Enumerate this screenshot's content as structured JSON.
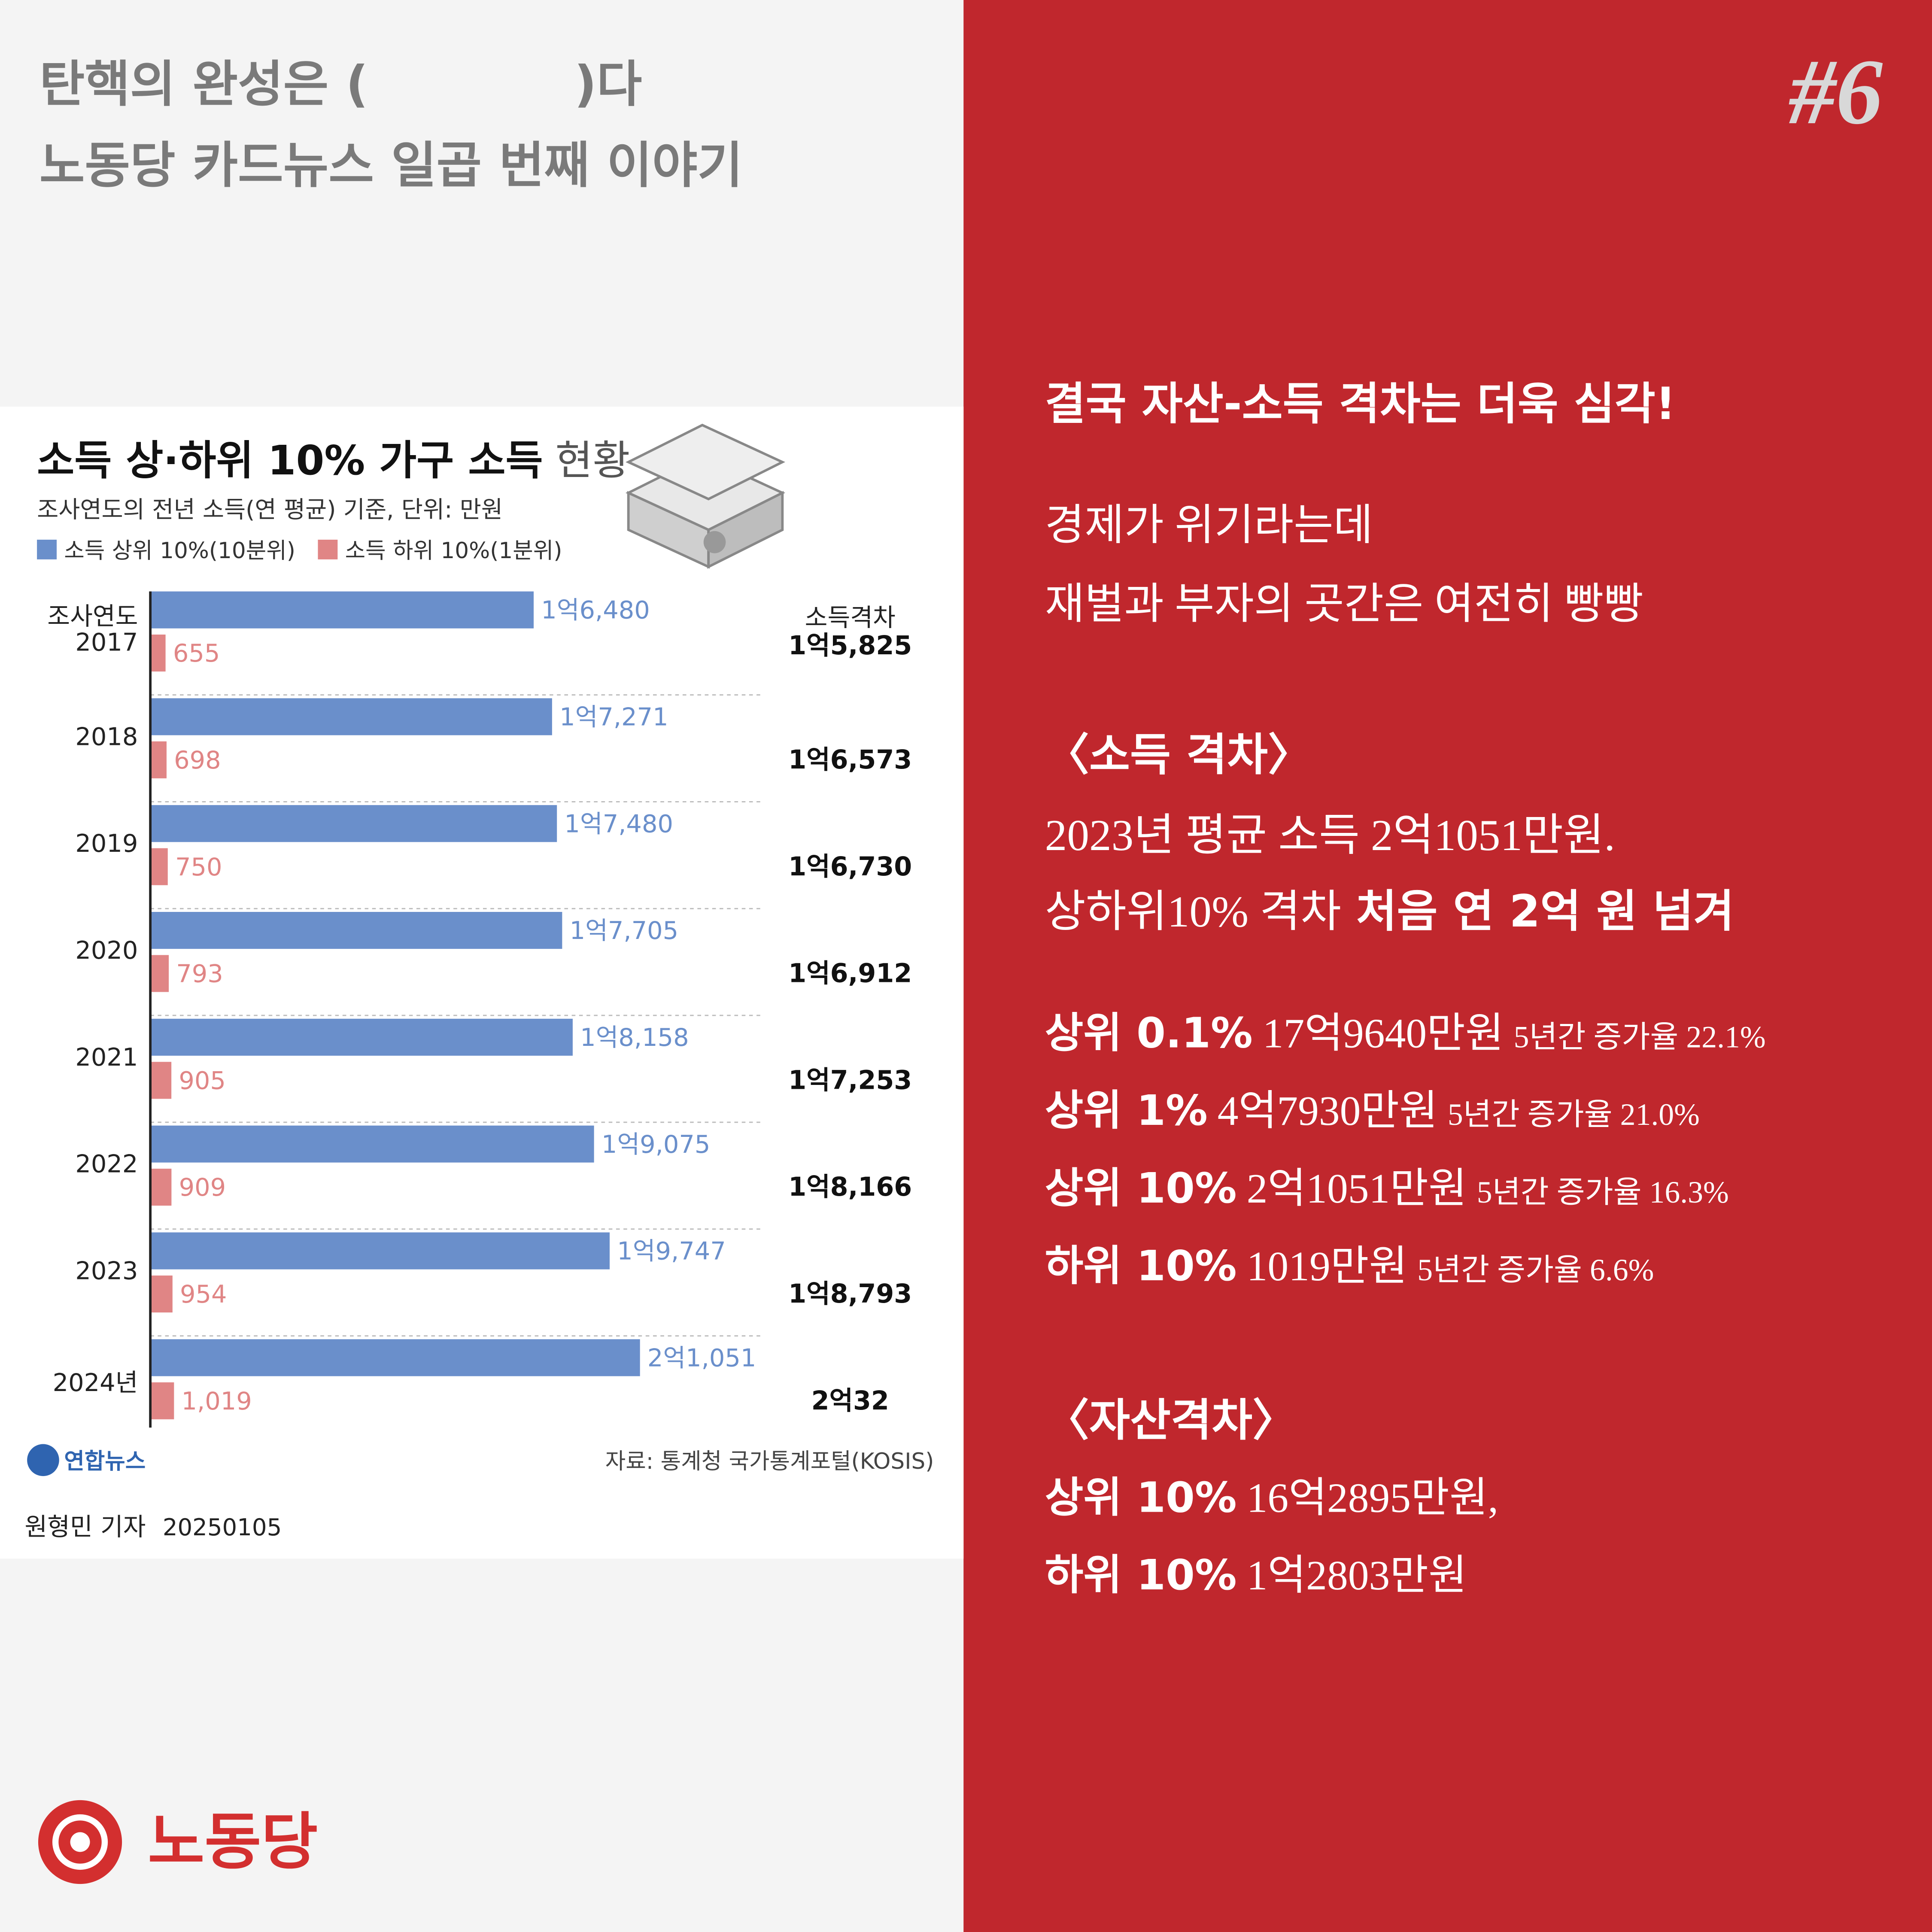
{
  "header": {
    "line1": "탄핵의 완성은 (            )다",
    "line2": "노동당 카드뉴스 일곱 번째 이야기",
    "badge": "#6"
  },
  "chart_data": {
    "type": "hbar",
    "title": "소득 상·하위 10% 가구 소득",
    "title_suffix": "현황",
    "subtitle": "조사연도의 전년 소득(연 평균) 기준, 단위: 만원",
    "y_label": "조사연도",
    "categories": [
      "2017",
      "2018",
      "2019",
      "2020",
      "2021",
      "2022",
      "2023",
      "2024년"
    ],
    "series": [
      {
        "name": "소득 상위 10%(10분위)",
        "color": "#6a8fcb",
        "values": [
          16480,
          17271,
          17480,
          17705,
          18158,
          19075,
          19747,
          21051
        ],
        "value_labels": [
          "1억6,480",
          "1억7,271",
          "1억7,480",
          "1억7,705",
          "1억8,158",
          "1억9,075",
          "1억9,747",
          "2억1,051"
        ]
      },
      {
        "name": "소득 하위 10%(1분위)",
        "color": "#e08585",
        "values": [
          655,
          698,
          750,
          793,
          905,
          909,
          954,
          1019
        ],
        "value_labels": [
          "655",
          "698",
          "750",
          "793",
          "905",
          "909",
          "954",
          "1,019"
        ]
      }
    ],
    "xlim": [
      0,
      33000
    ],
    "gap": {
      "header": "소득격차",
      "values": [
        "1억5,825",
        "1억6,573",
        "1억6,730",
        "1억6,912",
        "1억7,253",
        "1억8,166",
        "1억8,793",
        "2억32"
      ]
    },
    "source": "자료: 통계청 국가통계포털(KOSIS)",
    "agency": "연합뉴스",
    "reporter": "원형민 기자",
    "date": "20250105"
  },
  "right_panel": {
    "heading": "결국 자산-소득 격차는 더욱 심각!",
    "intro": [
      "경제가 위기라는데",
      "재벌과 부자의 곳간은 여전히 빵빵"
    ],
    "income_gap": {
      "heading": "〈소득 격차〉",
      "line1": "2023년 평균 소득 2억1051만원.",
      "line2": [
        "상하위10% 격차",
        "처음 연 2억 원 넘겨"
      ]
    },
    "stats": [
      [
        "상위 0.1%",
        "17억9640만원",
        "5년간 증가율 22.1%"
      ],
      [
        "상위 1%",
        "4억7930만원",
        "5년간 증가율 21.0%"
      ],
      [
        "상위 10%",
        "2억1051만원",
        "5년간 증가율 16.3%"
      ],
      [
        "하위 10%",
        "1019만원",
        "5년간 증가율 6.6%"
      ]
    ],
    "asset_gap": {
      "heading": "〈자산격차〉",
      "rows": [
        [
          "상위 10%",
          "16억2895만원,"
        ],
        [
          "하위 10%",
          "1억2803만원"
        ]
      ]
    }
  },
  "footer": {
    "party": "노동당"
  }
}
